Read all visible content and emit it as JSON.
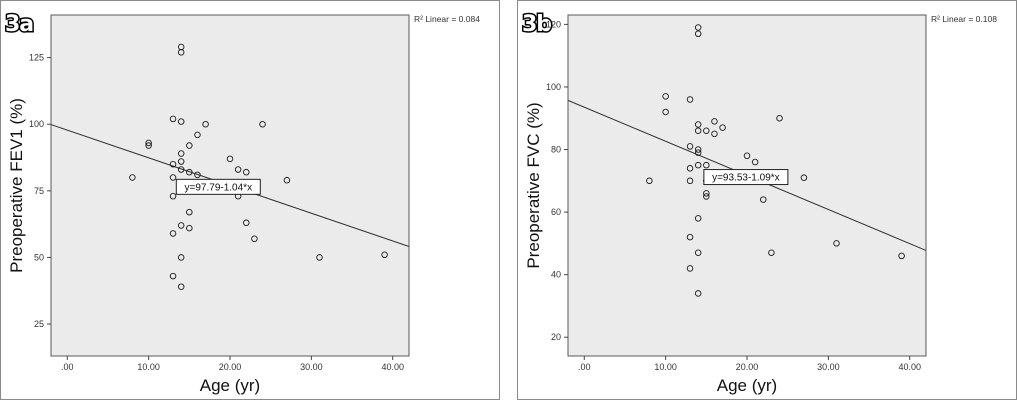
{
  "chart_data": [
    {
      "type": "scatter",
      "panel_label": "3a",
      "xlabel": "Age (yr)",
      "ylabel": "Preoperative FEV1 (%)",
      "xlim": [
        -2,
        42
      ],
      "ylim": [
        13,
        141
      ],
      "x_ticks": [
        0,
        10,
        20,
        30,
        40
      ],
      "x_tick_labels": [
        ".00",
        "10.00",
        "20.00",
        "30.00",
        "40.00"
      ],
      "y_ticks": [
        25,
        50,
        75,
        100,
        125
      ],
      "y_tick_labels": [
        "25",
        "50",
        "75",
        "100",
        "125"
      ],
      "r2_label": "R² Linear = 0.084",
      "fit": {
        "intercept": 97.79,
        "slope": -1.04,
        "label": "y=97.79-1.04*x",
        "label_anchor": [
          13.4,
          76.5
        ]
      },
      "points": [
        {
          "x": 8,
          "y": 80
        },
        {
          "x": 10,
          "y": 93
        },
        {
          "x": 10,
          "y": 92
        },
        {
          "x": 13,
          "y": 102
        },
        {
          "x": 13,
          "y": 85
        },
        {
          "x": 13,
          "y": 80
        },
        {
          "x": 13,
          "y": 73
        },
        {
          "x": 13,
          "y": 59
        },
        {
          "x": 13,
          "y": 43
        },
        {
          "x": 14,
          "y": 129
        },
        {
          "x": 14,
          "y": 127
        },
        {
          "x": 14,
          "y": 101
        },
        {
          "x": 14,
          "y": 89
        },
        {
          "x": 14,
          "y": 86
        },
        {
          "x": 14,
          "y": 83
        },
        {
          "x": 14,
          "y": 78
        },
        {
          "x": 14,
          "y": 62
        },
        {
          "x": 14,
          "y": 50
        },
        {
          "x": 14,
          "y": 39
        },
        {
          "x": 15,
          "y": 92
        },
        {
          "x": 15,
          "y": 82
        },
        {
          "x": 15,
          "y": 67
        },
        {
          "x": 15,
          "y": 61
        },
        {
          "x": 16,
          "y": 96
        },
        {
          "x": 16,
          "y": 81
        },
        {
          "x": 17,
          "y": 100
        },
        {
          "x": 20,
          "y": 87
        },
        {
          "x": 21,
          "y": 83
        },
        {
          "x": 21,
          "y": 73
        },
        {
          "x": 22,
          "y": 82
        },
        {
          "x": 22,
          "y": 63
        },
        {
          "x": 23,
          "y": 57
        },
        {
          "x": 24,
          "y": 100
        },
        {
          "x": 27,
          "y": 79
        },
        {
          "x": 31,
          "y": 50
        },
        {
          "x": 39,
          "y": 51
        }
      ]
    },
    {
      "type": "scatter",
      "panel_label": "3b",
      "xlabel": "Age (yr)",
      "ylabel": "Preoperative FVC (%)",
      "xlim": [
        -2,
        42
      ],
      "ylim": [
        14,
        123
      ],
      "x_ticks": [
        0,
        10,
        20,
        30,
        40
      ],
      "x_tick_labels": [
        ".00",
        "10.00",
        "20.00",
        "30.00",
        "40.00"
      ],
      "y_ticks": [
        20,
        40,
        60,
        80,
        100,
        120
      ],
      "y_tick_labels": [
        "20",
        "40",
        "60",
        "80",
        "100",
        "120"
      ],
      "r2_label": "R² Linear = 0.108",
      "fit": {
        "intercept": 93.53,
        "slope": -1.09,
        "label": "y=93.53-1.09*x",
        "label_anchor": [
          14.7,
          71.2
        ]
      },
      "points": [
        {
          "x": 8,
          "y": 70
        },
        {
          "x": 10,
          "y": 97
        },
        {
          "x": 10,
          "y": 92
        },
        {
          "x": 13,
          "y": 96
        },
        {
          "x": 13,
          "y": 81
        },
        {
          "x": 13,
          "y": 74
        },
        {
          "x": 13,
          "y": 70
        },
        {
          "x": 13,
          "y": 52
        },
        {
          "x": 13,
          "y": 42
        },
        {
          "x": 14,
          "y": 119
        },
        {
          "x": 14,
          "y": 117
        },
        {
          "x": 14,
          "y": 88
        },
        {
          "x": 14,
          "y": 86
        },
        {
          "x": 14,
          "y": 80
        },
        {
          "x": 14,
          "y": 79
        },
        {
          "x": 14,
          "y": 75
        },
        {
          "x": 14,
          "y": 58
        },
        {
          "x": 14,
          "y": 47
        },
        {
          "x": 14,
          "y": 34
        },
        {
          "x": 15,
          "y": 86
        },
        {
          "x": 15,
          "y": 75
        },
        {
          "x": 15,
          "y": 70
        },
        {
          "x": 15,
          "y": 66
        },
        {
          "x": 15,
          "y": 65
        },
        {
          "x": 16,
          "y": 89
        },
        {
          "x": 16,
          "y": 85
        },
        {
          "x": 17,
          "y": 87
        },
        {
          "x": 20,
          "y": 78
        },
        {
          "x": 21,
          "y": 76
        },
        {
          "x": 22,
          "y": 64
        },
        {
          "x": 23,
          "y": 47
        },
        {
          "x": 24,
          "y": 90
        },
        {
          "x": 27,
          "y": 71
        },
        {
          "x": 31,
          "y": 50
        },
        {
          "x": 39,
          "y": 46
        }
      ]
    }
  ],
  "colors": {
    "plot_background": "#ebebeb",
    "marker_stroke": "#1a1a1a",
    "fit_line": "#333333",
    "badge_fill": "#ffffff",
    "badge_stroke": "#000000"
  }
}
